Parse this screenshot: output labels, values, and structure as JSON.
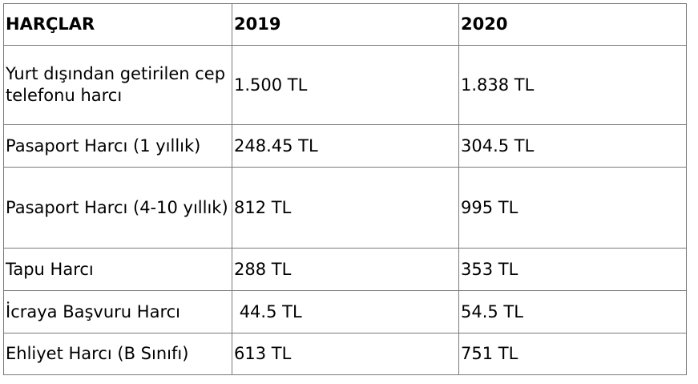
{
  "table": {
    "headers": [
      "HARÇLAR",
      "2019",
      "2020"
    ],
    "rows": [
      [
        "Yurt dışından getirilen cep telefonu harcı",
        "1.500 TL",
        "1.838 TL"
      ],
      [
        "Pasaport Harcı (1 yıllık)",
        "248.45 TL",
        "304.5 TL"
      ],
      [
        "Pasaport Harcı (4-10 yıllık)",
        "812 TL",
        "995 TL"
      ],
      [
        "Tapu Harcı",
        "288 TL",
        "353 TL"
      ],
      [
        "İcraya Başvuru Harcı",
        " 44.5 TL",
        "54.5 TL"
      ],
      [
        "Ehliyet Harcı (B Sınıfı)",
        "613 TL",
        "751 TL"
      ]
    ]
  }
}
